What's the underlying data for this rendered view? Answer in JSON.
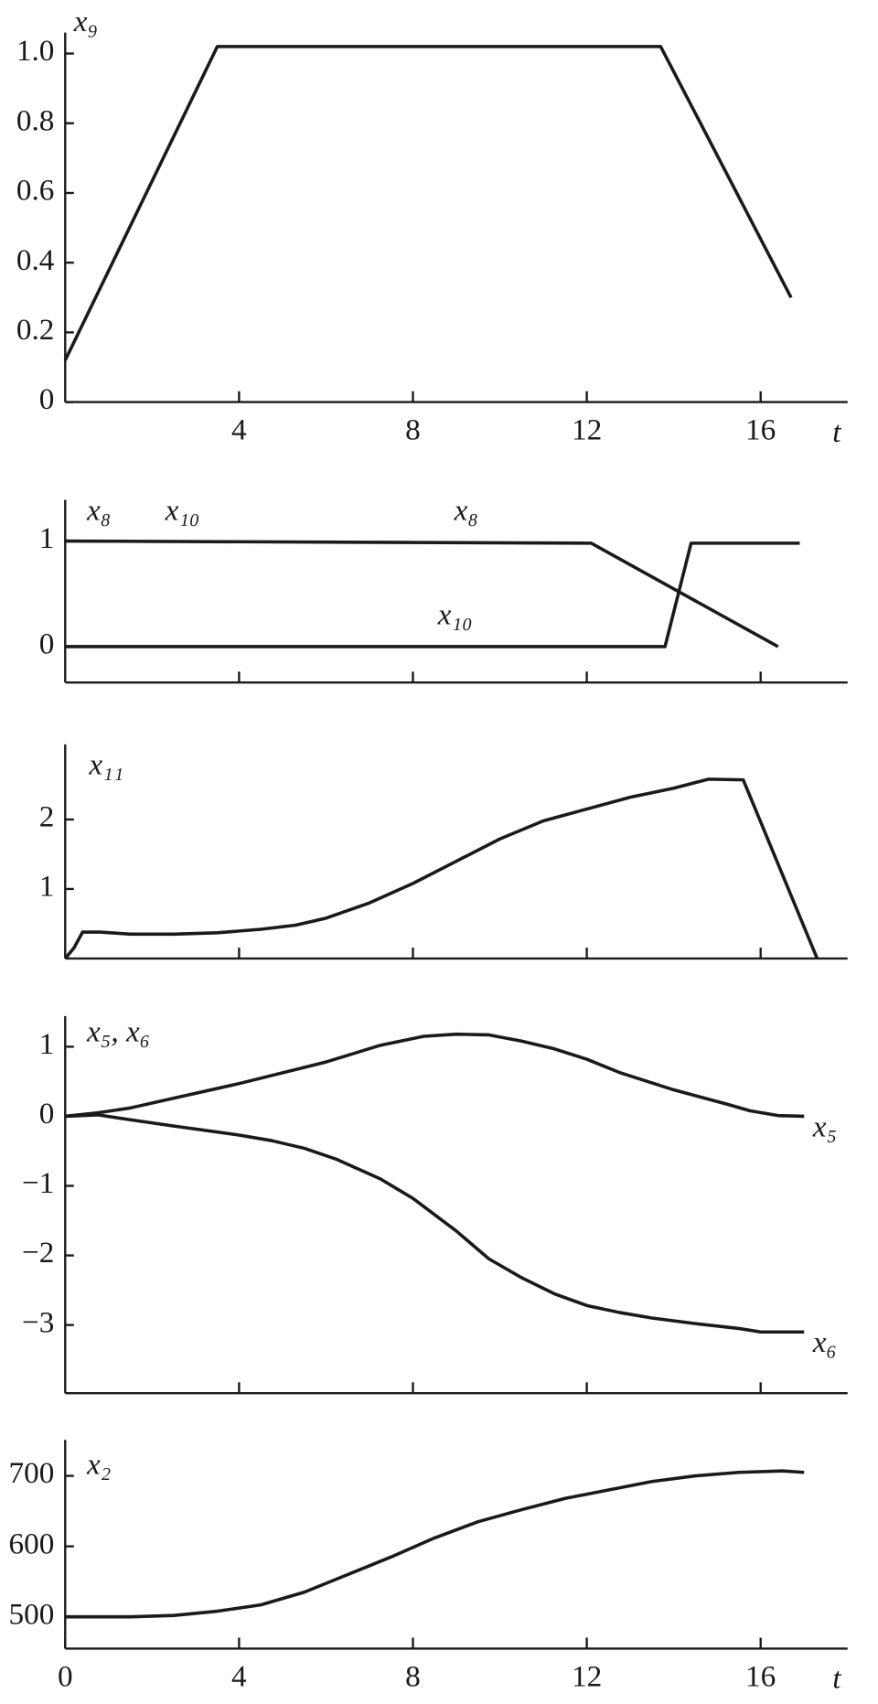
{
  "chart_data": [
    {
      "type": "line",
      "ylabel": "x₉",
      "xlabel": "t",
      "xlim": [
        0,
        18
      ],
      "xticks": [
        4,
        8,
        12,
        16
      ],
      "ylim": [
        0,
        1.06
      ],
      "yticks": [
        0,
        0.2,
        0.4,
        0.6,
        0.8,
        {
          "value": 1,
          "label": "1.0"
        }
      ],
      "series": [
        {
          "color": "#1a1a1a",
          "x": [
            0,
            3.5,
            13.7,
            16.7
          ],
          "values": [
            0.12,
            1.02,
            1.02,
            0.3
          ]
        }
      ]
    },
    {
      "type": "line",
      "annotations": [
        "x₈",
        "x₁₀",
        "x₈",
        "x₁₀"
      ],
      "xlim": [
        0,
        18
      ],
      "xticks": [
        4,
        8,
        12,
        16
      ],
      "xtick_labels": false,
      "ylim": [
        -0.34,
        1.39
      ],
      "yticks": [
        0,
        1
      ],
      "series": [
        {
          "color": "#1a1a1a",
          "x": [
            0,
            12.1,
            16.4
          ],
          "values": [
            1,
            0.98,
            0
          ]
        },
        {
          "color": "#1a1a1a",
          "x": [
            0,
            13.8,
            14.4,
            16.9
          ],
          "values": [
            0,
            0,
            0.98,
            0.98
          ]
        }
      ]
    },
    {
      "type": "line",
      "ylabel": "x₁₁",
      "xlim": [
        0,
        18
      ],
      "xticks": [
        4,
        8,
        12,
        16
      ],
      "xtick_labels": false,
      "ylim": [
        0,
        3.08
      ],
      "yticks": [
        1,
        2
      ],
      "series": [
        {
          "color": "#1a1a1a",
          "x": [
            0,
            0.2,
            0.4,
            0.8,
            1.5,
            2.5,
            3.5,
            4.5,
            5.3,
            6,
            7,
            8,
            9,
            10,
            11,
            12,
            13,
            14,
            14.8,
            15.6,
            17.3
          ],
          "values": [
            0,
            0.15,
            0.38,
            0.38,
            0.35,
            0.35,
            0.37,
            0.42,
            0.48,
            0.58,
            0.8,
            1.08,
            1.4,
            1.72,
            1.98,
            2.15,
            2.32,
            2.45,
            2.58,
            2.57,
            0
          ]
        }
      ]
    },
    {
      "type": "line",
      "ylabel": "x₅, x₆",
      "xlim": [
        0,
        18
      ],
      "xticks": [
        4,
        8,
        12,
        16
      ],
      "xtick_labels": false,
      "ylim": [
        -3.98,
        1.44
      ],
      "yticks": [
        {
          "value": -3,
          "label": "−3"
        },
        {
          "value": -2,
          "label": "−2"
        },
        {
          "value": -1,
          "label": "−1"
        },
        0,
        1
      ],
      "series": [
        {
          "name": "x₅",
          "color": "#1a1a1a",
          "x": [
            0,
            0.75,
            1.5,
            2.5,
            4,
            6,
            7.25,
            8.25,
            9,
            9.75,
            10.5,
            11.25,
            12,
            12.75,
            14,
            15.25,
            15.75,
            16.4,
            17
          ],
          "values": [
            0,
            0.05,
            0.12,
            0.26,
            0.47,
            0.78,
            1.02,
            1.15,
            1.18,
            1.17,
            1.08,
            0.97,
            0.82,
            0.63,
            0.38,
            0.17,
            0.08,
            0.01,
            0
          ]
        },
        {
          "name": "x₆",
          "color": "#1a1a1a",
          "x": [
            0,
            0.75,
            1.5,
            2.5,
            4,
            4.75,
            5.5,
            6.25,
            7.25,
            8,
            9,
            9.75,
            10.5,
            11.25,
            12,
            12.75,
            13.5,
            14.5,
            15.5,
            16,
            17
          ],
          "values": [
            0,
            0.02,
            -0.05,
            -0.14,
            -0.27,
            -0.35,
            -0.46,
            -0.62,
            -0.9,
            -1.18,
            -1.65,
            -2.05,
            -2.32,
            -2.55,
            -2.72,
            -2.82,
            -2.9,
            -2.98,
            -3.05,
            -3.1,
            -3.1
          ]
        }
      ]
    },
    {
      "type": "line",
      "ylabel": "x₂",
      "xlabel": "t",
      "xlim": [
        0,
        18
      ],
      "xticks": [
        0,
        4,
        8,
        12,
        16
      ],
      "ylim": [
        455,
        751
      ],
      "yticks": [
        500,
        600,
        700
      ],
      "series": [
        {
          "color": "#1a1a1a",
          "x": [
            0,
            1.5,
            2.5,
            3.5,
            4.5,
            5.5,
            6.5,
            7.5,
            8.5,
            9.5,
            10.5,
            11.5,
            12.5,
            13.5,
            14.5,
            15.5,
            16.5,
            17
          ],
          "values": [
            500,
            500,
            502,
            508,
            517,
            535,
            560,
            585,
            612,
            635,
            652,
            668,
            680,
            692,
            700,
            705,
            707,
            705
          ]
        }
      ]
    }
  ]
}
